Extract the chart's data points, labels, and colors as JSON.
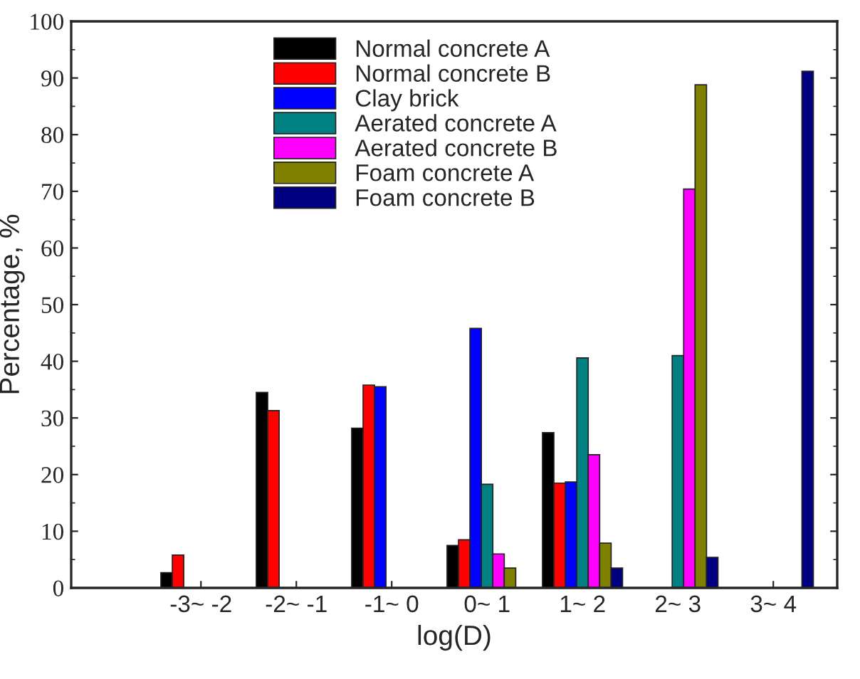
{
  "chart_data": {
    "type": "bar",
    "xlabel": "log(D)",
    "ylabel": "Percentage, %",
    "categories": [
      "-3~ -2",
      "-2~ -1",
      "-1~ 0",
      "0~ 1",
      "1~ 2",
      "2~ 3",
      "3~ 4"
    ],
    "series": [
      {
        "name": "Normal concrete A",
        "color": "#000000",
        "values": [
          2.7,
          34.5,
          28.2,
          7.5,
          27.4,
          null,
          null
        ]
      },
      {
        "name": "Normal concrete B",
        "color": "#ff0000",
        "values": [
          5.8,
          31.3,
          35.8,
          8.5,
          18.5,
          null,
          null
        ]
      },
      {
        "name": "Clay brick",
        "color": "#0000ff",
        "values": [
          null,
          null,
          35.5,
          45.8,
          18.7,
          null,
          null
        ]
      },
      {
        "name": "Aerated concrete A",
        "color": "#008080",
        "values": [
          null,
          null,
          null,
          18.3,
          40.6,
          41.0,
          null
        ]
      },
      {
        "name": "Aerated concrete B",
        "color": "#ff00ff",
        "values": [
          null,
          null,
          null,
          6.0,
          23.5,
          70.4,
          null
        ]
      },
      {
        "name": "Foam concrete A",
        "color": "#808000",
        "values": [
          null,
          null,
          null,
          3.5,
          7.9,
          88.8,
          null
        ]
      },
      {
        "name": "Foam concrete B",
        "color": "#000080",
        "values": [
          null,
          null,
          null,
          null,
          3.5,
          5.4,
          91.2
        ]
      }
    ],
    "ylim": [
      0,
      100
    ],
    "yticks": [
      0,
      10,
      20,
      30,
      40,
      50,
      60,
      70,
      80,
      90,
      100
    ],
    "grid": false,
    "legend": "top"
  }
}
